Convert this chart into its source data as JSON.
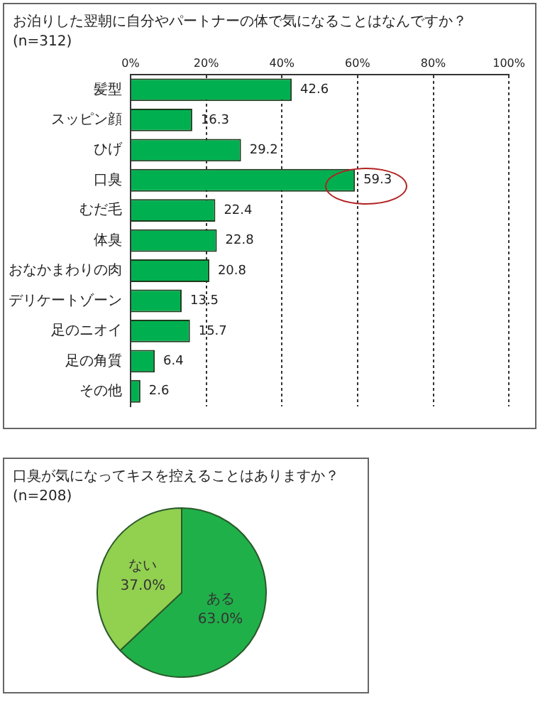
{
  "chart_data": [
    {
      "type": "bar",
      "orientation": "horizontal",
      "title": "お泊りした翌朝に自分やパートナーの体で気になることはなんですか？",
      "subtitle": "(n=312)",
      "categories": [
        "髪型",
        "スッピン顔",
        "ひげ",
        "口臭",
        "むだ毛",
        "体臭",
        "おなかまわりの肉",
        "デリケートゾーン",
        "足のニオイ",
        "足の角質",
        "その他"
      ],
      "values": [
        42.6,
        16.3,
        29.2,
        59.3,
        22.4,
        22.8,
        20.8,
        13.5,
        15.7,
        6.4,
        2.6
      ],
      "color": "#00b050",
      "xlim": [
        0,
        100
      ],
      "xticks": [
        {
          "value": 0,
          "label": "0%"
        },
        {
          "value": 20,
          "label": "20%"
        },
        {
          "value": 40,
          "label": "40%"
        },
        {
          "value": 60,
          "label": "60%"
        },
        {
          "value": 80,
          "label": "80%"
        },
        {
          "value": 100,
          "label": "100%"
        }
      ],
      "grid": "x",
      "data_labels": true,
      "legend": false
    },
    {
      "type": "pie",
      "title": "口臭が気になってキスを控えることはありますか？",
      "subtitle": "(n=208)",
      "categories": [
        "ある",
        "ない"
      ],
      "values": [
        63.0,
        37.0
      ],
      "colors": [
        "#20b04a",
        "#92d050"
      ],
      "value_labels": [
        "63.0%",
        "37.0%"
      ],
      "legend": false
    }
  ]
}
